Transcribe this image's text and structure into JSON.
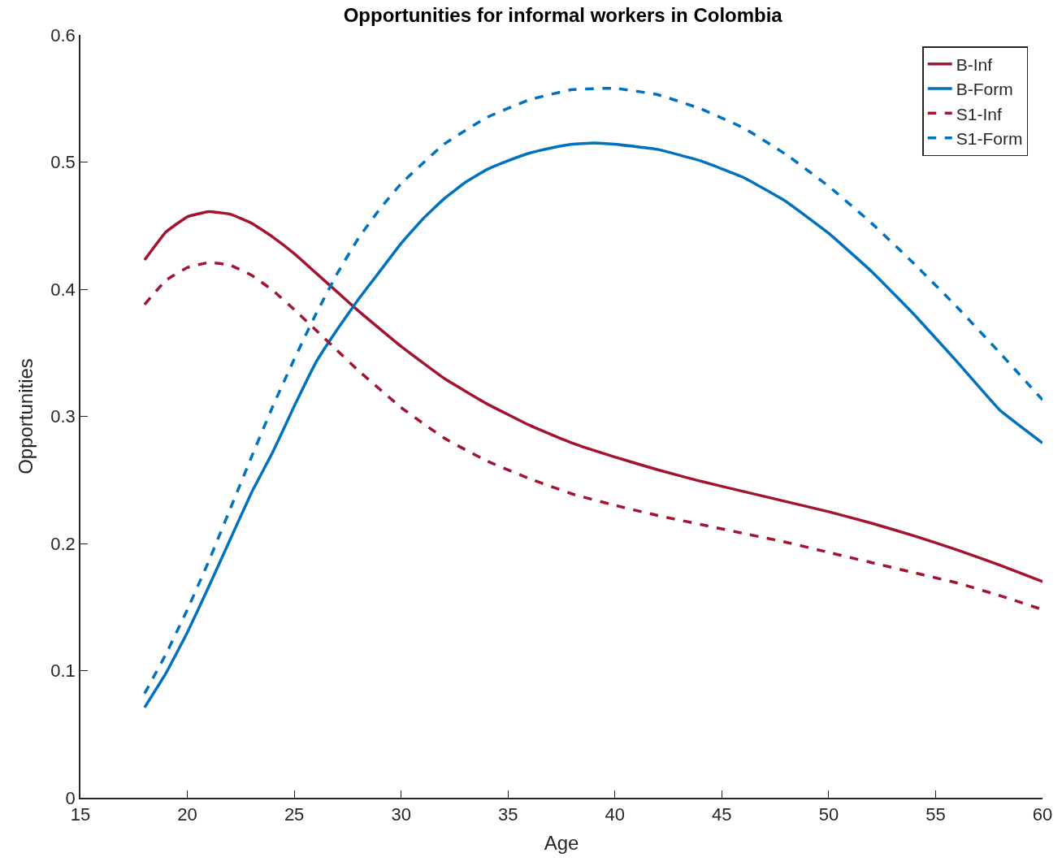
{
  "chart_data": {
    "type": "line",
    "title": "Opportunities for informal workers in Colombia",
    "xlabel": "Age",
    "ylabel": "Opportunities",
    "xlim": [
      15,
      60
    ],
    "xticks": [
      15,
      20,
      25,
      30,
      35,
      40,
      45,
      50,
      55,
      60
    ],
    "ylim": [
      0,
      0.6
    ],
    "yticks": [
      0,
      0.1,
      0.2,
      0.3,
      0.4,
      0.5,
      0.6
    ],
    "legend": "top right",
    "marker": "none",
    "series": [
      {
        "name": "B-Inf",
        "color": "#a2142f",
        "line_style": "solid",
        "x": [
          18,
          19,
          20,
          21,
          22,
          23,
          24,
          25,
          26,
          27,
          28,
          30,
          32,
          34,
          36,
          38,
          40,
          42,
          44,
          46,
          48,
          50,
          52,
          54,
          56,
          58,
          60
        ],
        "values": [
          0.423,
          0.445,
          0.457,
          0.461,
          0.459,
          0.452,
          0.441,
          0.428,
          0.413,
          0.398,
          0.383,
          0.355,
          0.33,
          0.31,
          0.293,
          0.279,
          0.268,
          0.258,
          0.249,
          0.241,
          0.233,
          0.225,
          0.216,
          0.206,
          0.195,
          0.183,
          0.17
        ]
      },
      {
        "name": "B-Form",
        "color": "#0072bd",
        "line_style": "solid",
        "x": [
          18,
          19,
          20,
          21,
          22,
          23,
          24,
          25,
          26,
          27,
          28,
          29,
          30,
          31,
          32,
          33,
          34,
          35,
          36,
          37,
          38,
          39,
          40,
          42,
          44,
          46,
          48,
          50,
          52,
          54,
          56,
          58,
          60
        ],
        "values": [
          0.071,
          0.098,
          0.13,
          0.166,
          0.203,
          0.24,
          0.272,
          0.308,
          0.342,
          0.368,
          0.392,
          0.414,
          0.436,
          0.455,
          0.471,
          0.484,
          0.494,
          0.501,
          0.507,
          0.511,
          0.514,
          0.515,
          0.514,
          0.51,
          0.501,
          0.488,
          0.469,
          0.444,
          0.414,
          0.38,
          0.343,
          0.305,
          0.279
        ]
      },
      {
        "name": "S1-Inf",
        "color": "#a2142f",
        "line_style": "dashed",
        "x": [
          18,
          19,
          20,
          21,
          22,
          23,
          24,
          25,
          26,
          27,
          28,
          30,
          32,
          34,
          36,
          38,
          40,
          42,
          44,
          46,
          48,
          50,
          52,
          54,
          56,
          58,
          60
        ],
        "values": [
          0.388,
          0.407,
          0.417,
          0.421,
          0.419,
          0.411,
          0.399,
          0.384,
          0.368,
          0.352,
          0.336,
          0.307,
          0.283,
          0.265,
          0.251,
          0.239,
          0.23,
          0.222,
          0.215,
          0.208,
          0.201,
          0.193,
          0.185,
          0.177,
          0.169,
          0.159,
          0.148
        ]
      },
      {
        "name": "S1-Form",
        "color": "#0072bd",
        "line_style": "dashed",
        "x": [
          18,
          19,
          20,
          21,
          22,
          23,
          24,
          25,
          26,
          27,
          28,
          29,
          30,
          32,
          34,
          36,
          38,
          40,
          42,
          44,
          46,
          48,
          50,
          52,
          54,
          56,
          58,
          60
        ],
        "values": [
          0.082,
          0.113,
          0.148,
          0.186,
          0.227,
          0.268,
          0.308,
          0.345,
          0.38,
          0.412,
          0.44,
          0.463,
          0.483,
          0.514,
          0.535,
          0.549,
          0.557,
          0.558,
          0.553,
          0.542,
          0.527,
          0.506,
          0.481,
          0.452,
          0.42,
          0.386,
          0.35,
          0.313
        ]
      }
    ]
  }
}
